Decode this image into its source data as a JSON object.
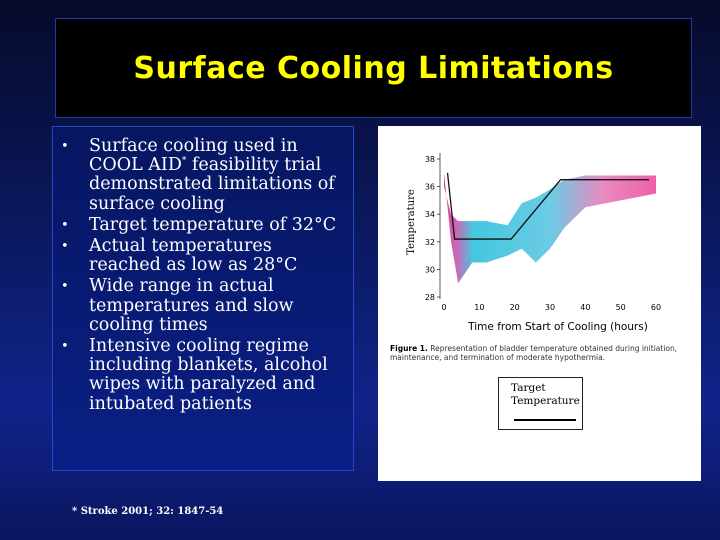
{
  "title": "Surface Cooling Limitations",
  "bullets": [
    {
      "pre": "Surface cooling used in COOL AID",
      "sup": "*",
      "post": " feasibility trial demonstrated limitations of surface cooling"
    },
    {
      "pre": "Target temperature of 32°C",
      "sup": "",
      "post": ""
    },
    {
      "pre": "Actual temperatures reached as low as 28°C",
      "sup": "",
      "post": ""
    },
    {
      "pre": "Wide range in actual temperatures and slow cooling times",
      "sup": "",
      "post": ""
    },
    {
      "pre": "Intensive cooling regime including blankets, alcohol wipes with paralyzed and intubated patients",
      "sup": "",
      "post": ""
    }
  ],
  "bullet_symbol": "•",
  "citation": "* Stroke 2001; 32: 1847-54",
  "figure": {
    "caption_bold": "Figure 1.",
    "caption_text": " Representation of bladder temperature obtained during initiation, maintenance, and termination of moderate hypothermia.",
    "legend_line1": "Target",
    "legend_line2": "Temperature"
  },
  "chart_data": {
    "type": "area",
    "xlabel": "Time from Start of Cooling (hours)",
    "ylabel": "Temperature",
    "xlim": [
      0,
      60
    ],
    "ylim": [
      28,
      38
    ],
    "x_ticks": [
      "0",
      "10",
      "20",
      "30",
      "40",
      "50",
      "60"
    ],
    "y_ticks": [
      "28",
      "30",
      "32",
      "34",
      "36",
      "38"
    ],
    "target_line": {
      "x": [
        1,
        3,
        11,
        19,
        33,
        58
      ],
      "y": [
        37,
        32.2,
        32.2,
        32.2,
        36.5,
        36.5
      ]
    },
    "band_upper": {
      "x": [
        0,
        2,
        4,
        8,
        12,
        18,
        22,
        26,
        30,
        34,
        40,
        50,
        60
      ],
      "y": [
        36,
        34,
        33.5,
        33.5,
        33.5,
        33.2,
        34.8,
        35.2,
        35.8,
        36.5,
        36.8,
        36.8,
        36.8
      ]
    },
    "band_lower": {
      "x": [
        0,
        2,
        4,
        8,
        12,
        18,
        22,
        26,
        30,
        34,
        40,
        50,
        60
      ],
      "y": [
        37,
        32,
        29,
        30.5,
        30.5,
        31,
        31.5,
        30.5,
        31.5,
        33,
        34.5,
        35,
        35.5
      ]
    },
    "colors": {
      "cool": "#44c8e0",
      "warm": "#f060a8"
    }
  }
}
